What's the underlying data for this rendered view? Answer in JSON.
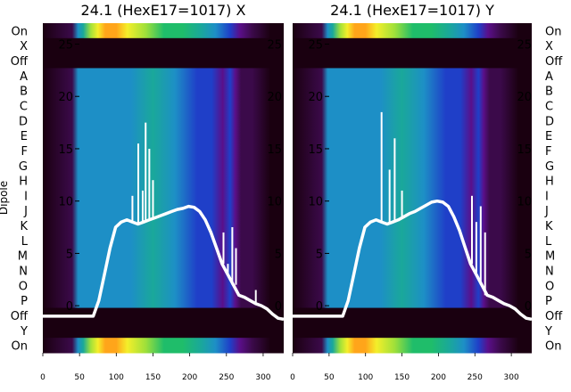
{
  "chart_data": {
    "type": "heatmap",
    "ylabel": "Dipole",
    "row_labels": [
      "On",
      "X",
      "Off",
      "A",
      "B",
      "C",
      "D",
      "E",
      "F",
      "G",
      "H",
      "I",
      "J",
      "K",
      "L",
      "M",
      "N",
      "O",
      "P",
      "Off",
      "Y",
      "On"
    ],
    "x_ticks": [
      0,
      50,
      100,
      150,
      200,
      250,
      300
    ],
    "xlim": [
      0,
      328
    ],
    "overlay_ticks": [
      0,
      5,
      10,
      15,
      20,
      25
    ],
    "overlay_ylim": [
      -4.5,
      27
    ],
    "colormap": [
      "#1a0010",
      "#3b0a4a",
      "#5a0f8a",
      "#1f3fc8",
      "#1d8fc6",
      "#1aa89a",
      "#1fbd6a",
      "#9fe03a",
      "#f4ee2a",
      "#ffa51a"
    ],
    "line_color": "#ffffff",
    "panels": [
      {
        "title": "24.1 (HexE17=1017) X",
        "overlay_y": [
          -1,
          -1,
          -1,
          -1,
          -1,
          -1,
          -1,
          -1,
          -1,
          -1,
          0.5,
          3,
          5.5,
          7.5,
          8,
          8.2,
          8,
          7.8,
          8,
          8.2,
          8.4,
          8.6,
          8.8,
          9,
          9.2,
          9.3,
          9.5,
          9.4,
          9,
          8.2,
          7,
          5.5,
          4,
          3,
          2,
          1,
          0.8,
          0.5,
          0.2,
          0,
          -0.3,
          -0.8,
          -1.2,
          -1.3
        ],
        "spikes": [
          {
            "x": 122,
            "y": 10.5
          },
          {
            "x": 130,
            "y": 15.5
          },
          {
            "x": 136,
            "y": 11
          },
          {
            "x": 140,
            "y": 17.5
          },
          {
            "x": 145,
            "y": 15
          },
          {
            "x": 150,
            "y": 12
          },
          {
            "x": 246,
            "y": 7
          },
          {
            "x": 252,
            "y": 4
          },
          {
            "x": 258,
            "y": 7.5
          },
          {
            "x": 263,
            "y": 5.5
          },
          {
            "x": 290,
            "y": 1.5
          }
        ]
      },
      {
        "title": "24.1 (HexE17=1017) Y",
        "overlay_y": [
          -1,
          -1,
          -1,
          -1,
          -1,
          -1,
          -1,
          -1,
          -1,
          -1,
          0.5,
          3,
          5.5,
          7.5,
          8,
          8.2,
          8,
          7.8,
          8,
          8.2,
          8.5,
          8.8,
          9,
          9.3,
          9.6,
          9.9,
          10,
          9.9,
          9.5,
          8.5,
          7.2,
          5.6,
          4,
          3,
          2,
          1,
          0.8,
          0.5,
          0.2,
          0,
          -0.3,
          -0.8,
          -1.2,
          -1.3
        ],
        "spikes": [
          {
            "x": 122,
            "y": 18.5
          },
          {
            "x": 133,
            "y": 13
          },
          {
            "x": 140,
            "y": 16
          },
          {
            "x": 150,
            "y": 11
          },
          {
            "x": 246,
            "y": 10.5
          },
          {
            "x": 252,
            "y": 8
          },
          {
            "x": 258,
            "y": 9.5
          },
          {
            "x": 264,
            "y": 7
          }
        ]
      }
    ]
  }
}
